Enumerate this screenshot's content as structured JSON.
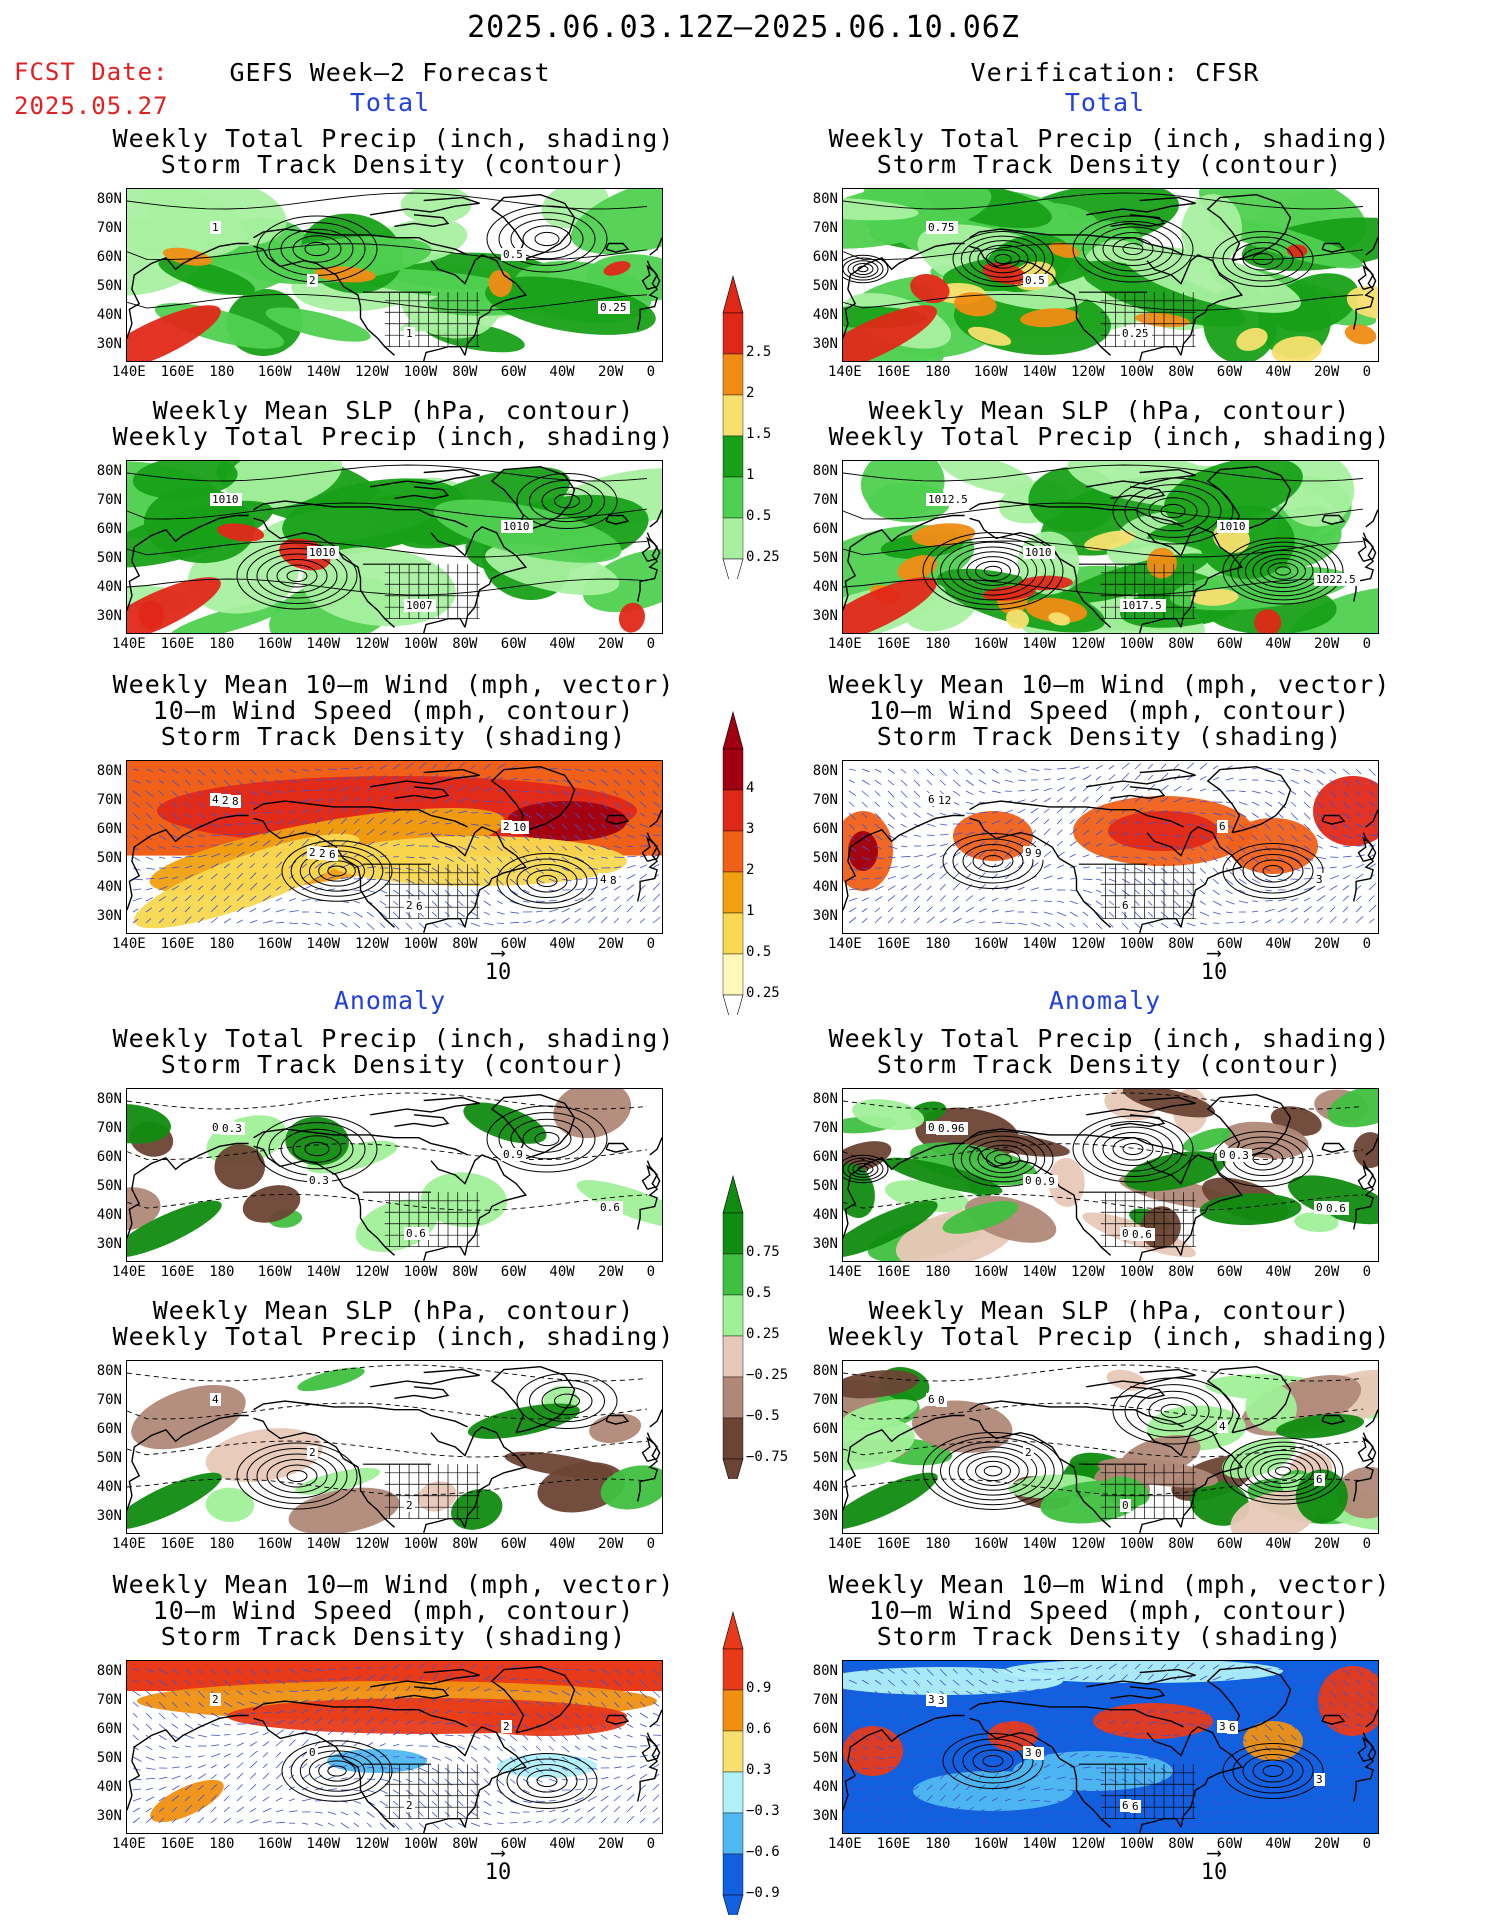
{
  "header": {
    "period": "2025.06.03.12Z‒2025.06.10.06Z",
    "fcst_label": "FCST Date:",
    "fcst_date": "2025.05.27",
    "left_title": "GEFS Week‒2 Forecast",
    "right_title": "Verification: CFSR"
  },
  "sections": {
    "total": "Total",
    "anomaly": "Anomaly"
  },
  "panel_titles": {
    "precip_storm": [
      "Weekly Total Precip (inch, shading)",
      "Storm Track Density (contour)"
    ],
    "slp_precip": [
      "Weekly Mean SLP (hPa, contour)",
      "Weekly Total Precip (inch, shading)"
    ],
    "wind": [
      "Weekly Mean 10‒m Wind (mph, vector)",
      "10‒m Wind Speed (mph, contour)",
      "Storm Track Density (shading)"
    ]
  },
  "axes": {
    "lat": [
      "80N",
      "70N",
      "60N",
      "50N",
      "40N",
      "30N"
    ],
    "lon": [
      "140E",
      "160E",
      "180",
      "160W",
      "140W",
      "120W",
      "100W",
      "80W",
      "60W",
      "40W",
      "20W",
      "0"
    ]
  },
  "vector_ref": "10",
  "colorbars": {
    "total_precip": {
      "labels": [
        "2.5",
        "2",
        "1.5",
        "1",
        "0.5",
        "0.25"
      ],
      "colors": [
        "#e02818",
        "#f08c14",
        "#f8e070",
        "#18a018",
        "#50d050",
        "#a8f0a0"
      ]
    },
    "total_std": {
      "labels": [
        "4",
        "3",
        "2",
        "1",
        "0.5",
        "0.25"
      ],
      "colors": [
        "#a00010",
        "#e02818",
        "#f06018",
        "#f0a010",
        "#f8d850",
        "#fff8b8"
      ]
    },
    "anom_precip": {
      "labels": [
        "0.75",
        "0.5",
        "0.25",
        "−0.25",
        "−0.5",
        "−0.75"
      ],
      "colors": [
        "#108c10",
        "#40c040",
        "#a0f098",
        "#e8c8b8",
        "#b08878",
        "#6c4434"
      ]
    },
    "anom_std": {
      "labels": [
        "0.9",
        "0.6",
        "0.3",
        "−0.3",
        "−0.6",
        "−0.9"
      ],
      "colors": [
        "#e83a18",
        "#f09010",
        "#f8e070",
        "#b0f0f8",
        "#50b8f0",
        "#1060e0"
      ]
    }
  },
  "contour_labels": {
    "fc_precip_total": [
      "1",
      "2",
      "1",
      "0.5",
      "0.25"
    ],
    "ob_precip_total": [
      "0.75",
      "0.5",
      "0.25"
    ],
    "fc_slp_total": [
      "1010",
      "1010",
      "1007",
      "1010"
    ],
    "ob_slp_total": [
      "1012.5",
      "1010",
      "1017.5",
      "1010",
      "1022.5"
    ],
    "fc_wind_total": [
      "4",
      "2",
      "2",
      "2",
      "4",
      "2",
      "2",
      "6",
      "10",
      "8",
      "8",
      "6"
    ],
    "ob_wind_total": [
      "6",
      "9",
      "6",
      "6",
      "3",
      "12",
      "9"
    ],
    "fc_precip_anom": [
      "0.6",
      "0.3",
      "0.6",
      "0.9",
      "0.6",
      "0.3"
    ],
    "ob_precip_anom": [
      "0.9",
      "0.6",
      "0.3",
      "0.9",
      "0.3",
      "0.96",
      "0.9",
      "0.6",
      "0.3",
      "0.6"
    ],
    "fc_slp_anom": [
      "4",
      "2",
      "2"
    ],
    "ob_slp_anom": [
      "6",
      "2",
      "0",
      "4",
      "6",
      "0"
    ],
    "fc_wind_anom": [
      "2",
      "0",
      "2",
      "2"
    ],
    "ob_wind_anom": [
      "3",
      "3",
      "6",
      "3",
      "3",
      "3",
      "0",
      "6",
      "6"
    ]
  }
}
